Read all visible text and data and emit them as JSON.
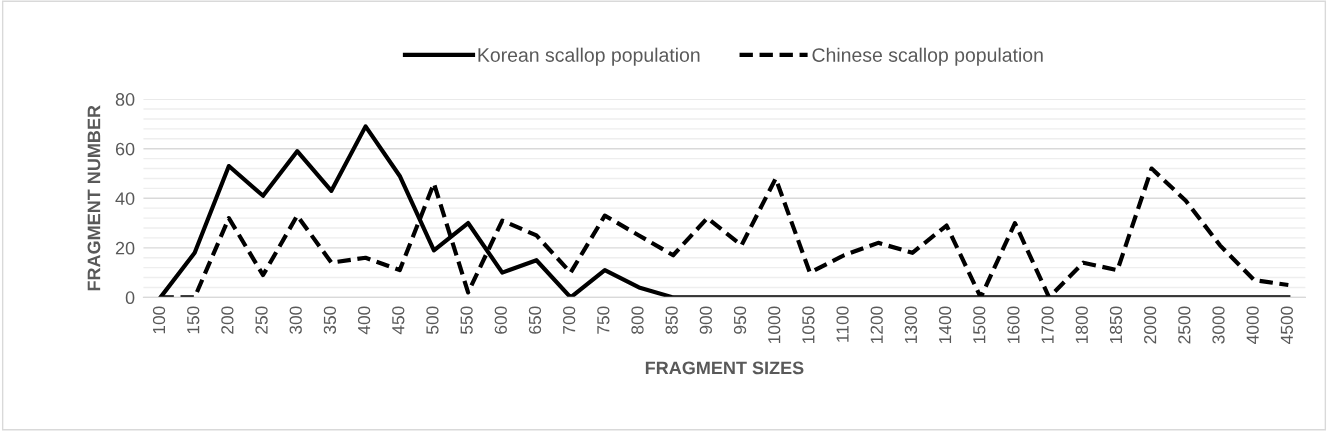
{
  "chart_data": {
    "type": "line",
    "xlabel": "FRAGMENT SIZES",
    "ylabel": "FRAGMENT NUMBER",
    "categories": [
      "100",
      "150",
      "200",
      "250",
      "300",
      "350",
      "400",
      "450",
      "500",
      "550",
      "600",
      "650",
      "700",
      "750",
      "800",
      "850",
      "900",
      "950",
      "1000",
      "1050",
      "1100",
      "1200",
      "1300",
      "1400",
      "1500",
      "1600",
      "1700",
      "1800",
      "1850",
      "2000",
      "2500",
      "3000",
      "4000",
      "4500"
    ],
    "series": [
      {
        "name": "Korean scallop population",
        "color": "#000000",
        "line_style": "solid",
        "values": [
          0,
          18,
          53,
          41,
          59,
          43,
          69,
          49,
          19,
          30,
          10,
          15,
          0,
          11,
          4,
          0,
          0,
          0,
          0,
          0,
          0,
          0,
          0,
          0,
          0,
          0,
          0,
          0,
          0,
          0,
          0,
          0,
          0,
          0
        ]
      },
      {
        "name": "Chinese scallop population",
        "color": "#000000",
        "line_style": "dashed",
        "values": [
          0,
          0,
          32,
          9,
          33,
          14,
          16,
          11,
          46,
          2,
          31,
          25,
          10,
          33,
          25,
          17,
          32,
          21,
          48,
          10,
          17,
          22,
          18,
          29,
          0,
          30,
          0,
          14,
          11,
          52,
          39,
          21,
          7,
          5
        ]
      }
    ],
    "ylim": [
      0,
      80
    ],
    "yticks": [
      0,
      {
        "value": 4,
        "label": null
      },
      {
        "value": 8,
        "label": null
      },
      {
        "value": 12,
        "label": null
      },
      {
        "value": 16,
        "label": null
      },
      20,
      {
        "value": 24,
        "label": null
      },
      {
        "value": 28,
        "label": null
      },
      {
        "value": 32,
        "label": null
      },
      {
        "value": 36,
        "label": null
      },
      40,
      {
        "value": 44,
        "label": null
      },
      {
        "value": 48,
        "label": null
      },
      {
        "value": 52,
        "label": null
      },
      {
        "value": 56,
        "label": null
      },
      60,
      {
        "value": 64,
        "label": null
      },
      {
        "value": 68,
        "label": null
      },
      {
        "value": 72,
        "label": null
      },
      {
        "value": 76,
        "label": null
      },
      80
    ],
    "grid": "y",
    "legend": "top",
    "marker": "none"
  }
}
